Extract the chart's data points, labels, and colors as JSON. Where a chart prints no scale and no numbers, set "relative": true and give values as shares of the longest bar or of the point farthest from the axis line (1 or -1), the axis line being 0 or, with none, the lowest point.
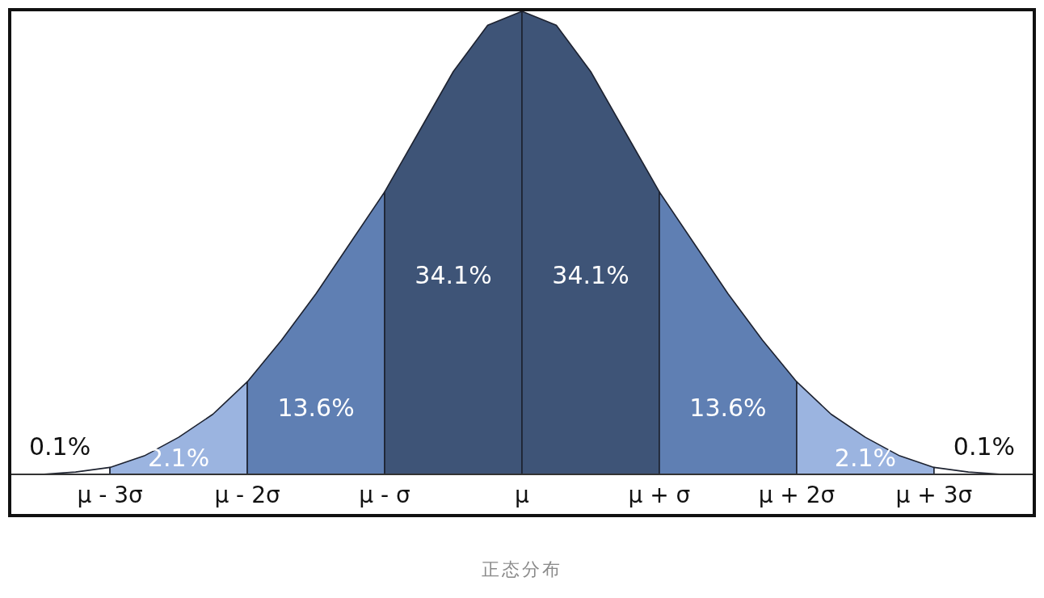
{
  "chart_data": {
    "type": "area",
    "relative": true,
    "xlim": [
      -3.73,
      3.73
    ],
    "xticks": [
      {
        "value": -3,
        "label": "μ - 3σ"
      },
      {
        "value": -2,
        "label": "μ - 2σ"
      },
      {
        "value": -1,
        "label": "μ - σ"
      },
      {
        "value": 0,
        "label": "μ"
      },
      {
        "value": 1,
        "label": "μ + σ"
      },
      {
        "value": 2,
        "label": "μ + 2σ"
      },
      {
        "value": 3,
        "label": "μ + 3σ"
      }
    ],
    "series": [
      {
        "color": "#ffffff",
        "x": [
          -3.73,
          -3.5,
          -3.25,
          -3
        ],
        "values": [
          0,
          0,
          0.005,
          0.015
        ]
      },
      {
        "color": "#9bb4e0",
        "x": [
          -3,
          -2.75,
          -2.5,
          -2.25,
          -2
        ],
        "values": [
          0.015,
          0.04,
          0.08,
          0.13,
          0.2
        ]
      },
      {
        "color": "#5f7fb3",
        "x": [
          -2,
          -1.75,
          -1.5,
          -1.25,
          -1
        ],
        "values": [
          0.2,
          0.29,
          0.39,
          0.5,
          0.61
        ]
      },
      {
        "color": "#3e5477",
        "x": [
          -1,
          -0.75,
          -0.5,
          -0.25,
          0
        ],
        "values": [
          0.61,
          0.74,
          0.87,
          0.97,
          1
        ]
      },
      {
        "color": "#3e5477",
        "x": [
          0,
          0.25,
          0.5,
          0.75,
          1
        ],
        "values": [
          1,
          0.97,
          0.87,
          0.74,
          0.61
        ]
      },
      {
        "color": "#5f7fb3",
        "x": [
          1,
          1.25,
          1.5,
          1.75,
          2
        ],
        "values": [
          0.61,
          0.5,
          0.39,
          0.29,
          0.2
        ]
      },
      {
        "color": "#9bb4e0",
        "x": [
          2,
          2.25,
          2.5,
          2.75,
          3
        ],
        "values": [
          0.2,
          0.13,
          0.08,
          0.04,
          0.015
        ]
      },
      {
        "color": "#ffffff",
        "x": [
          3,
          3.25,
          3.5,
          3.73
        ],
        "values": [
          0.015,
          0.005,
          0,
          0
        ]
      }
    ],
    "annotations": [
      "0.1%",
      "2.1%",
      "13.6%",
      "34.1%",
      "34.1%",
      "13.6%",
      "2.1%",
      "0.1%",
      "正态分布"
    ]
  }
}
